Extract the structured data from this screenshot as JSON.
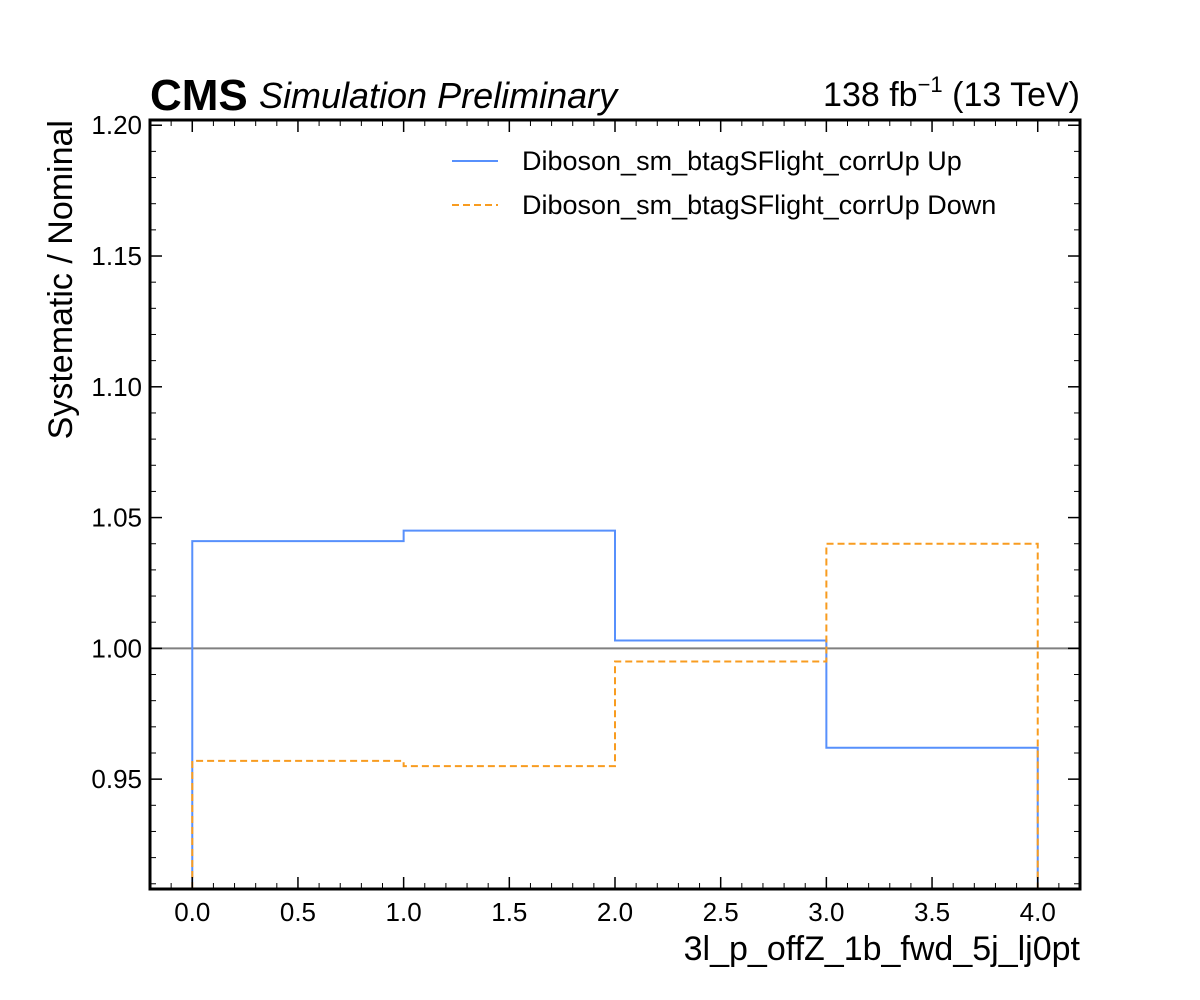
{
  "header": {
    "experiment": "CMS",
    "status": "Simulation Preliminary",
    "lumi_value": "138 fb",
    "lumi_exp": "−1",
    "lumi_energy": " (13 TeV)"
  },
  "chart_data": {
    "type": "line",
    "drawstyle": "steps",
    "xlabel": "3l_p_offZ_1b_fwd_5j_lj0pt",
    "ylabel": "Systematic / Nominal",
    "xlim": [
      -0.2,
      4.2
    ],
    "ylim": [
      0.908,
      1.202
    ],
    "xticks": [
      0.0,
      0.5,
      1.0,
      1.5,
      2.0,
      2.5,
      3.0,
      3.5,
      4.0
    ],
    "xtick_labels": [
      "0.0",
      "0.5",
      "1.0",
      "1.5",
      "2.0",
      "2.5",
      "3.0",
      "3.5",
      "4.0"
    ],
    "yticks": [
      0.95,
      1.0,
      1.05,
      1.1,
      1.15,
      1.2
    ],
    "ytick_labels": [
      "0.95",
      "1.00",
      "1.05",
      "1.10",
      "1.15",
      "1.20"
    ],
    "reference_line": 1.0,
    "bin_edges": [
      0,
      1,
      2,
      3,
      4
    ],
    "series": [
      {
        "name": "Diboson_sm_btagSFlight_corrUp Up",
        "values": [
          1.041,
          1.045,
          1.003,
          0.962
        ],
        "color": "#5790fc",
        "style": "solid"
      },
      {
        "name": "Diboson_sm_btagSFlight_corrUp Down",
        "values": [
          0.957,
          0.955,
          0.995,
          1.04
        ],
        "color": "#f89c20",
        "style": "dashed"
      }
    ],
    "reference_color": "#808080",
    "legend_position": "top-right",
    "grid": false
  }
}
